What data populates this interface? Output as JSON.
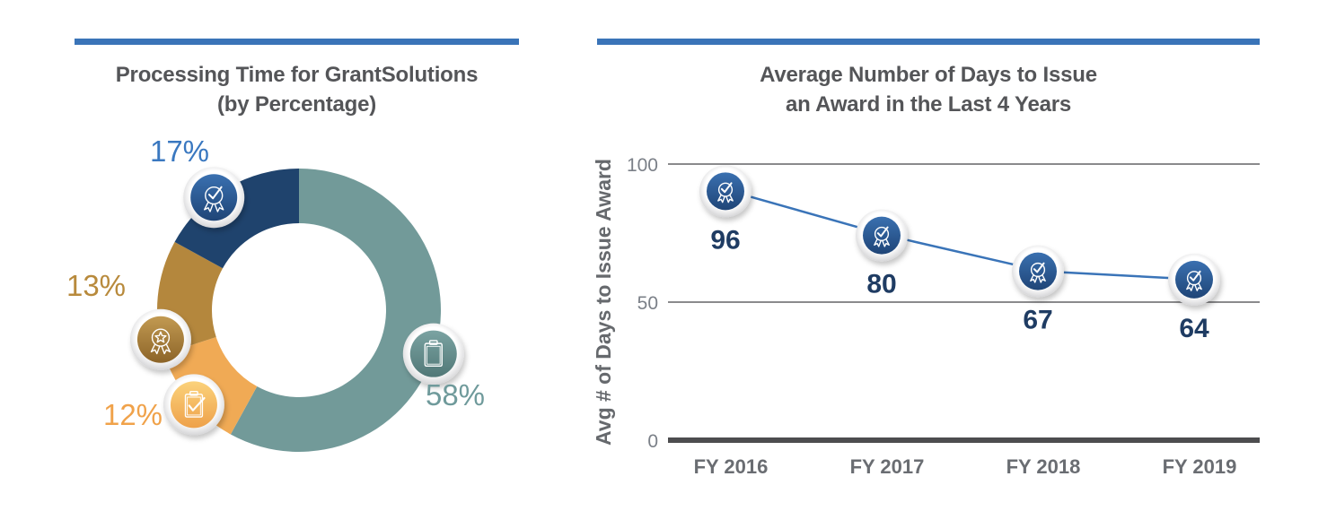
{
  "left_panel": {
    "title_line1": "Processing Time for GrantSolutions",
    "title_line2": "(by Percentage)"
  },
  "right_panel": {
    "title_line1": "Average Number of Days to Issue",
    "title_line2": "an Award in the Last 4 Years"
  },
  "colors": {
    "rule": "#3a74b8",
    "title": "#545558",
    "line": "#3a74b8",
    "marker": "#2a5592",
    "value_label": "#1f3c63"
  },
  "chart_data": [
    {
      "type": "pie",
      "variant": "donut",
      "title": "Processing Time for GrantSolutions (by Percentage)",
      "slices": [
        {
          "label": "58%",
          "value": 58,
          "color": "#729a99",
          "label_color": "#6f9a9b",
          "icon": "clipboard-icon"
        },
        {
          "label": "12%",
          "value": 12,
          "color": "#f0aa55",
          "label_color": "#f0a24a",
          "icon": "clipboard-check-icon"
        },
        {
          "label": "13%",
          "value": 13,
          "color": "#b4873d",
          "label_color": "#b88a3c",
          "icon": "star-ribbon-icon"
        },
        {
          "label": "17%",
          "value": 17,
          "color": "#1f436d",
          "label_color": "#3a78c0",
          "icon": "award-check-icon"
        }
      ],
      "start": "top",
      "direction": "clockwise"
    },
    {
      "type": "line",
      "title": "Average Number of Days to Issue an Award in the Last 4 Years",
      "xlabel": "",
      "ylabel": "Avg # of Days to Issue Award",
      "categories": [
        "FY 2016",
        "FY 2017",
        "FY 2018",
        "FY 2019"
      ],
      "series": [
        {
          "name": "Avg days",
          "values": [
            96,
            80,
            67,
            64
          ],
          "marker_icon": "award-check-icon"
        }
      ],
      "value_labels": [
        "96",
        "80",
        "67",
        "64"
      ],
      "yticks": [
        0,
        50,
        100
      ],
      "ytick_labels": [
        "0",
        "50",
        "100"
      ],
      "ylim": [
        0,
        100
      ],
      "grid": true
    }
  ]
}
